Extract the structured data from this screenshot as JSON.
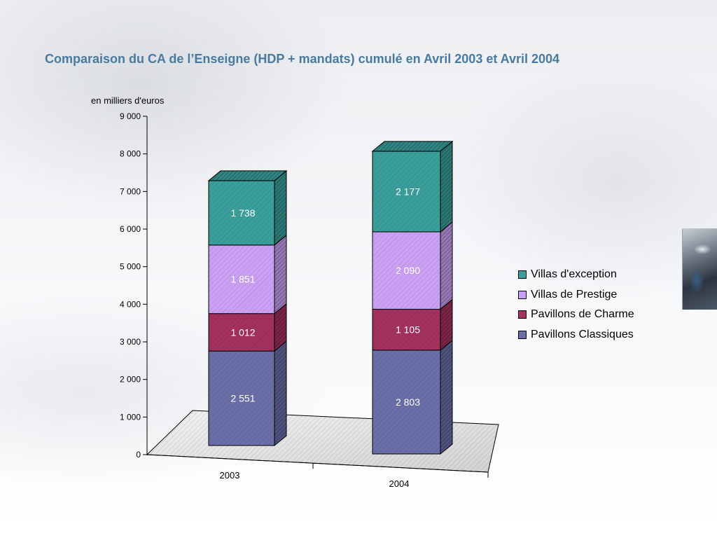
{
  "page": {
    "title": "Comparaison du CA de l’Enseigne (HDP + mandats) cumulé en Avril 2003 et Avril 2004"
  },
  "chart_data": {
    "type": "bar",
    "stacked": true,
    "three_d": true,
    "unit_label": "en milliers d'euros",
    "categories": [
      "2003",
      "2004"
    ],
    "series": [
      {
        "name": "Pavillons Classiques",
        "values": [
          2551,
          2803
        ],
        "labels": [
          "2 551",
          "2 803"
        ],
        "color": "#6b6fa8"
      },
      {
        "name": "Pavillons de Charme",
        "values": [
          1012,
          1105
        ],
        "labels": [
          "1 012",
          "1 105"
        ],
        "color": "#a3315e"
      },
      {
        "name": "Villas de Prestige",
        "values": [
          1851,
          2090
        ],
        "labels": [
          "1 851",
          "2 090"
        ],
        "color": "#c9a0f2"
      },
      {
        "name": "Villas d'exception",
        "values": [
          1738,
          2177
        ],
        "labels": [
          "1 738",
          "2 177"
        ],
        "color": "#3a9e9a"
      }
    ],
    "y_axis": {
      "min": 0,
      "max": 9000,
      "step": 1000,
      "tick_labels": [
        "0",
        "1 000",
        "2 000",
        "3 000",
        "4 000",
        "5 000",
        "6 000",
        "7 000",
        "8 000",
        "9 000"
      ]
    },
    "legend_order": [
      "Villas d'exception",
      "Villas de Prestige",
      "Pavillons de Charme",
      "Pavillons Classiques"
    ],
    "legend_position": "right",
    "grid": false
  }
}
